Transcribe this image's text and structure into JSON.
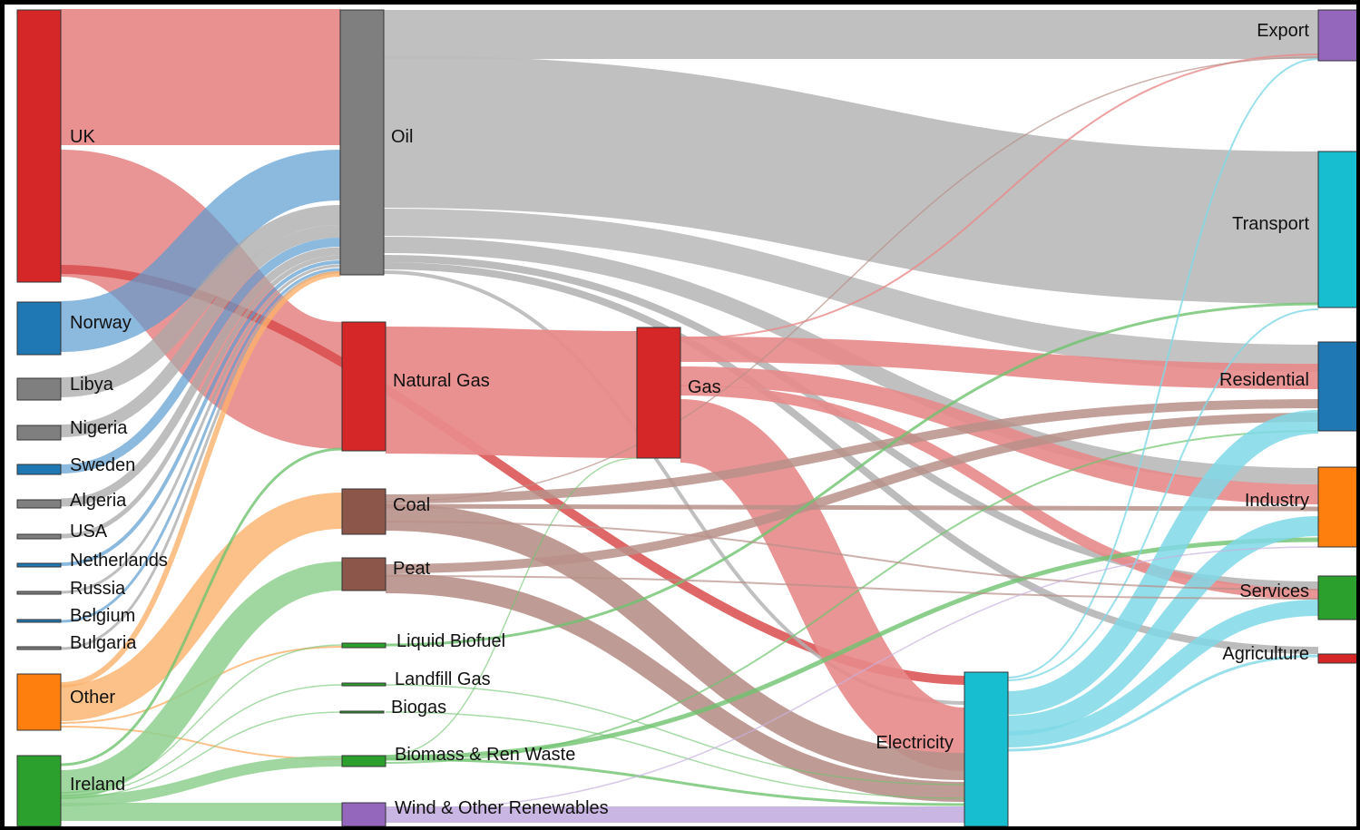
{
  "nodes": [
    {
      "id": "uk",
      "label": "UK",
      "color": "#d62728"
    },
    {
      "id": "norway",
      "label": "Norway",
      "color": "#1f77b4"
    },
    {
      "id": "libya",
      "label": "Libya",
      "color": "#7f7f7f"
    },
    {
      "id": "nigeria",
      "label": "Nigeria",
      "color": "#7f7f7f"
    },
    {
      "id": "sweden",
      "label": "Sweden",
      "color": "#1f77b4"
    },
    {
      "id": "algeria",
      "label": "Algeria",
      "color": "#7f7f7f"
    },
    {
      "id": "usa",
      "label": "USA",
      "color": "#7f7f7f"
    },
    {
      "id": "netherlands",
      "label": "Netherlands",
      "color": "#1f77b4"
    },
    {
      "id": "russia",
      "label": "Russia",
      "color": "#7f7f7f"
    },
    {
      "id": "belgium",
      "label": "Belgium",
      "color": "#1f77b4"
    },
    {
      "id": "bulgaria",
      "label": "Bulgaria",
      "color": "#7f7f7f"
    },
    {
      "id": "other",
      "label": "Other",
      "color": "#ff7f0e"
    },
    {
      "id": "ireland",
      "label": "Ireland",
      "color": "#2ca02c"
    },
    {
      "id": "oil",
      "label": "Oil",
      "color": "#7f7f7f"
    },
    {
      "id": "natgas",
      "label": "Natural Gas",
      "color": "#d62728"
    },
    {
      "id": "coal",
      "label": "Coal",
      "color": "#8c564b"
    },
    {
      "id": "peat",
      "label": "Peat",
      "color": "#8c564b"
    },
    {
      "id": "liqbio",
      "label": "Liquid Biofuel",
      "color": "#2ca02c"
    },
    {
      "id": "landfill",
      "label": "Landfill Gas",
      "color": "#2ca02c"
    },
    {
      "id": "biogas",
      "label": "Biogas",
      "color": "#2ca02c"
    },
    {
      "id": "biomass",
      "label": "Biomass & Ren Waste",
      "color": "#2ca02c"
    },
    {
      "id": "wind",
      "label": "Wind & Other Renewables",
      "color": "#9467bd"
    },
    {
      "id": "gas",
      "label": "Gas",
      "color": "#d62728"
    },
    {
      "id": "elec",
      "label": "Electricity",
      "color": "#17becf"
    },
    {
      "id": "export",
      "label": "Export",
      "color": "#9467bd"
    },
    {
      "id": "transport",
      "label": "Transport",
      "color": "#17becf"
    },
    {
      "id": "residential",
      "label": "Residential",
      "color": "#1f77b4"
    },
    {
      "id": "industry",
      "label": "Industry",
      "color": "#ff7f0e"
    },
    {
      "id": "services",
      "label": "Services",
      "color": "#2ca02c"
    },
    {
      "id": "agriculture",
      "label": "Agriculture",
      "color": "#d62728"
    }
  ]
}
